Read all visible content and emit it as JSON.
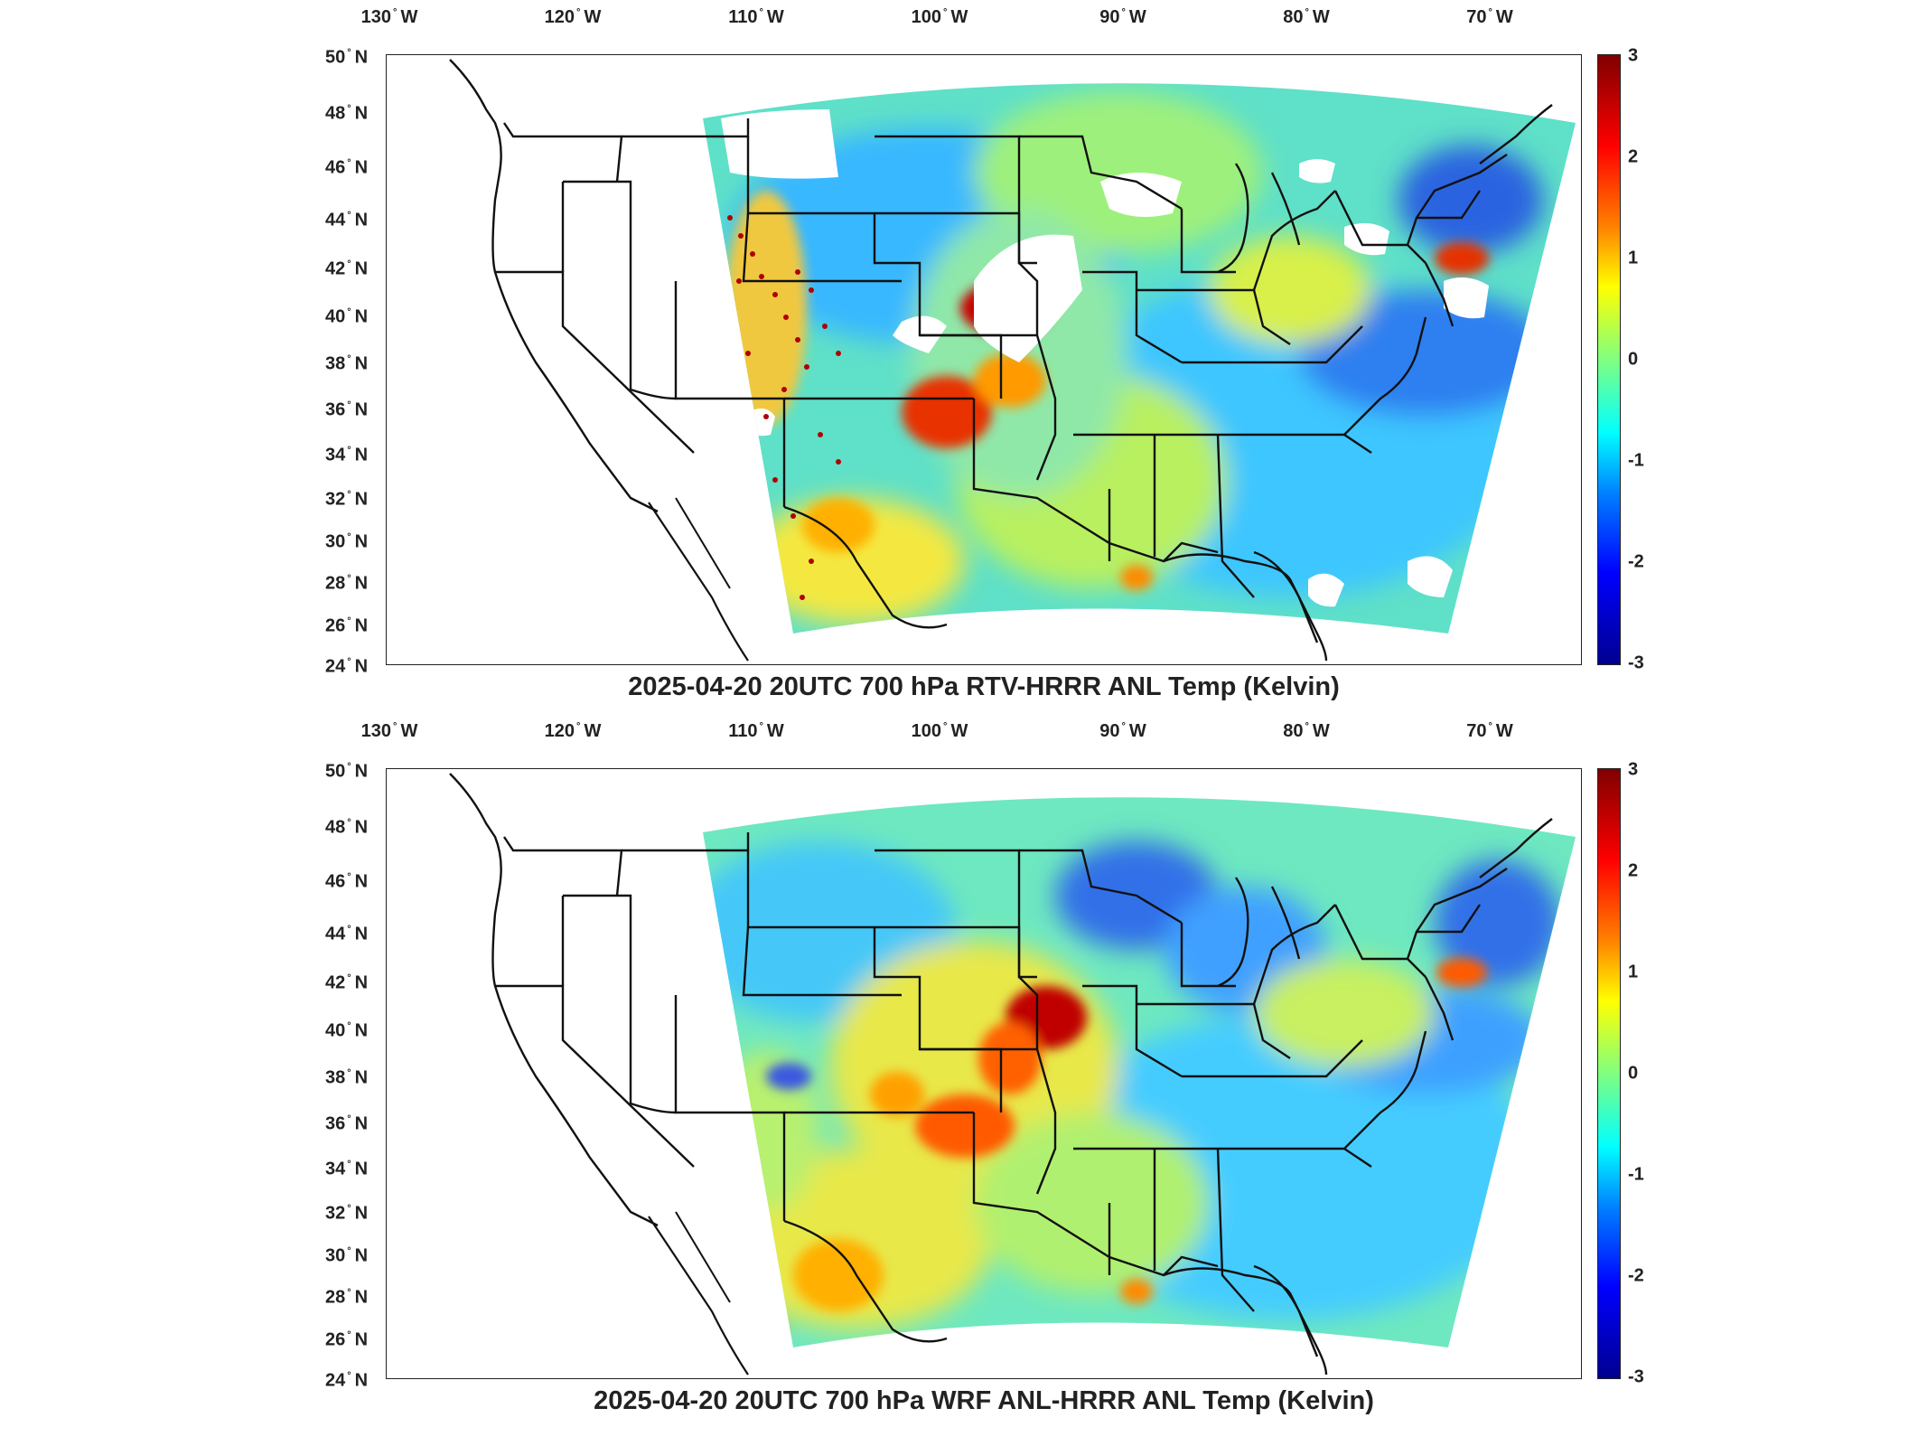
{
  "lon_ticks": [
    "130",
    "120",
    "110",
    "100",
    "90",
    "80",
    "70"
  ],
  "lon_suffix": "W",
  "lat_ticks": [
    "50",
    "48",
    "46",
    "44",
    "42",
    "40",
    "38",
    "36",
    "34",
    "32",
    "30",
    "28",
    "26",
    "24"
  ],
  "lat_suffix": "N",
  "colorbar": {
    "ticks": [
      "3",
      "2",
      "1",
      "0",
      "-1",
      "-2",
      "-3"
    ],
    "range": [
      -3,
      3
    ],
    "colormap": "jet"
  },
  "panels": [
    {
      "caption": "2025-04-20 20UTC 700 hPa RTV-HRRR ANL Temp (Kelvin)"
    },
    {
      "caption": "2025-04-20 20UTC 700 hPa WRF ANL-HRRR ANL Temp (Kelvin)"
    }
  ],
  "map_extent": {
    "lon": [
      -131,
      -65
    ],
    "lat": [
      24,
      50
    ]
  },
  "colors": {
    "hot": "#b40000",
    "warm": "#ff8a00",
    "mild": "#f2f23a",
    "neutral": "#7cf0a0",
    "cool": "#30c8ff",
    "cold": "#1a4fd8"
  }
}
